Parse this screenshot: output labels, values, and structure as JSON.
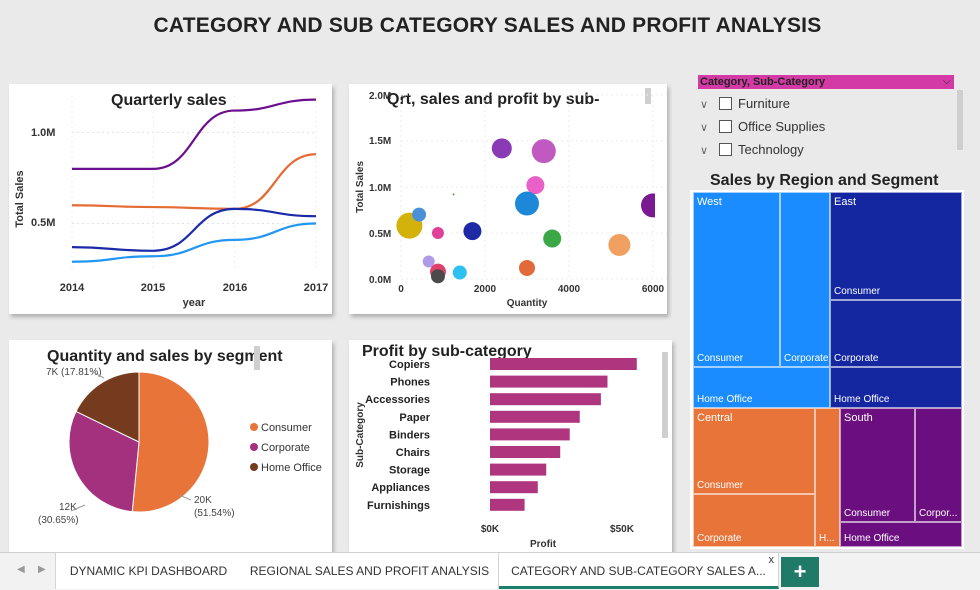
{
  "page_title": "CATEGORY AND SUB CATEGORY SALES AND PROFIT ANALYSIS",
  "quarterly": {
    "title": "Quarterly sales",
    "ylabel": "Total Sales",
    "xlabel": "year",
    "yticks": [
      "1.0M",
      "0.5M"
    ],
    "xticks": [
      "2014",
      "2015",
      "2016",
      "2017"
    ]
  },
  "bubble": {
    "title": "Qrt, sales and profit by sub-",
    "ylabel": "Total Sales",
    "xlabel": "Quantity",
    "yticks": [
      "2.0M",
      "1.5M",
      "1.0M",
      "0.5M",
      "0.0M"
    ],
    "xticks": [
      "0",
      "2000",
      "4000",
      "6000"
    ]
  },
  "slicer": {
    "header": "Category, Sub-Category",
    "items": [
      "Furniture",
      "Office Supplies",
      "Technology"
    ]
  },
  "treemap": {
    "title": "Sales by Region and Segment",
    "west": {
      "label": "West",
      "consumer": "Consumer",
      "corporate": "Corporate",
      "home": "Home Office"
    },
    "east": {
      "label": "East",
      "consumer": "Consumer",
      "corporate": "Corporate",
      "home": "Home Office"
    },
    "central": {
      "label": "Central",
      "consumer": "Consumer",
      "corporate": "Corporate",
      "home": "H..."
    },
    "south": {
      "label": "South",
      "consumer": "Consumer",
      "corporate": "Corpor...",
      "home": "Home Office"
    },
    "colors": {
      "west": "#1a8cff",
      "east": "#1427a0",
      "central": "#e8743a",
      "south": "#6b0f80"
    }
  },
  "pie": {
    "title": "Quantity and sales by segment",
    "legend": [
      "Consumer",
      "Corporate",
      "Home Office"
    ],
    "labels": {
      "home": "7K (17.81%)",
      "corp_a": "12K",
      "corp_b": "(30.65%)",
      "cons_a": "20K",
      "cons_b": "(51.54%)"
    },
    "colors": {
      "consumer": "#e8743a",
      "corporate": "#a4317e",
      "home": "#743b1f"
    }
  },
  "bars": {
    "title": "Profit by sub-category",
    "ylabel": "Sub-Category",
    "xlabel": "Profit",
    "xticks": [
      "$0K",
      "$50K"
    ],
    "color": "#b0357f"
  },
  "chart_data": [
    {
      "type": "line",
      "title": "Quarterly sales",
      "xlabel": "year",
      "ylabel": "Total Sales",
      "x": [
        2014,
        2015,
        2016,
        2017
      ],
      "ylim": [
        0.25,
        1.2
      ],
      "series": [
        {
          "values": [
            0.8,
            0.8,
            1.12,
            1.18
          ],
          "color": "#6a0f8e"
        },
        {
          "values": [
            0.6,
            0.59,
            0.58,
            0.88
          ],
          "color": "#e56b35"
        },
        {
          "values": [
            0.37,
            0.35,
            0.58,
            0.54
          ],
          "color": "#1b2aa8"
        },
        {
          "values": [
            0.29,
            0.32,
            0.41,
            0.5
          ],
          "color": "#2196f3"
        }
      ]
    },
    {
      "type": "scatter",
      "title": "Qrt, sales and profit by sub-",
      "xlabel": "Quantity",
      "ylabel": "Total Sales",
      "xlim": [
        0,
        6000
      ],
      "ylim": [
        0,
        2.0
      ],
      "points": [
        {
          "x": 200,
          "y": 0.58,
          "r": 13,
          "color": "#d4b20c"
        },
        {
          "x": 430,
          "y": 0.7,
          "r": 7,
          "color": "#4a90d9"
        },
        {
          "x": 880,
          "y": 0.5,
          "r": 6,
          "color": "#e0409a"
        },
        {
          "x": 660,
          "y": 0.19,
          "r": 6,
          "color": "#b19be8"
        },
        {
          "x": 880,
          "y": 0.08,
          "r": 8,
          "color": "#e0406a"
        },
        {
          "x": 880,
          "y": 0.03,
          "r": 7,
          "color": "#4a4a4a"
        },
        {
          "x": 1400,
          "y": 0.07,
          "r": 7,
          "color": "#2ec0f0"
        },
        {
          "x": 1700,
          "y": 0.52,
          "r": 9,
          "color": "#1e2aa5"
        },
        {
          "x": 2400,
          "y": 1.42,
          "r": 10,
          "color": "#8a3ab5"
        },
        {
          "x": 3400,
          "y": 1.39,
          "r": 12,
          "color": "#c05ac0"
        },
        {
          "x": 3200,
          "y": 1.02,
          "r": 9,
          "color": "#e860c8"
        },
        {
          "x": 3000,
          "y": 0.82,
          "r": 12,
          "color": "#1e88d8"
        },
        {
          "x": 3600,
          "y": 0.44,
          "r": 9,
          "color": "#3aa844"
        },
        {
          "x": 3000,
          "y": 0.12,
          "r": 8,
          "color": "#e26a3a"
        },
        {
          "x": 5200,
          "y": 0.37,
          "r": 11,
          "color": "#f0a060"
        },
        {
          "x": 6000,
          "y": 0.8,
          "r": 12,
          "color": "#7a1a90"
        }
      ]
    },
    {
      "type": "pie",
      "title": "Quantity and sales by segment",
      "labels": [
        "Consumer",
        "Corporate",
        "Home Office"
      ],
      "values": [
        51.54,
        30.65,
        17.81
      ],
      "colors": [
        "#e8743a",
        "#a4317e",
        "#743b1f"
      ]
    },
    {
      "type": "bar",
      "orientation": "horizontal",
      "title": "Profit by sub-category",
      "xlabel": "Profit",
      "ylabel": "Sub-Category",
      "categories": [
        "Copiers",
        "Phones",
        "Accessories",
        "Paper",
        "Binders",
        "Chairs",
        "Storage",
        "Appliances",
        "Furnishings"
      ],
      "values": [
        55.6,
        44.5,
        42.0,
        34.0,
        30.2,
        26.6,
        21.3,
        18.1,
        13.1
      ],
      "xlim": [
        0,
        60
      ]
    }
  ],
  "tabs": {
    "tab1": "DYNAMIC KPI DASHBOARD",
    "tab2": "REGIONAL SALES AND PROFIT ANALYSIS",
    "tab3": "CATEGORY AND SUB-CATEGORY SALES A...",
    "close": "x",
    "add": "+"
  }
}
